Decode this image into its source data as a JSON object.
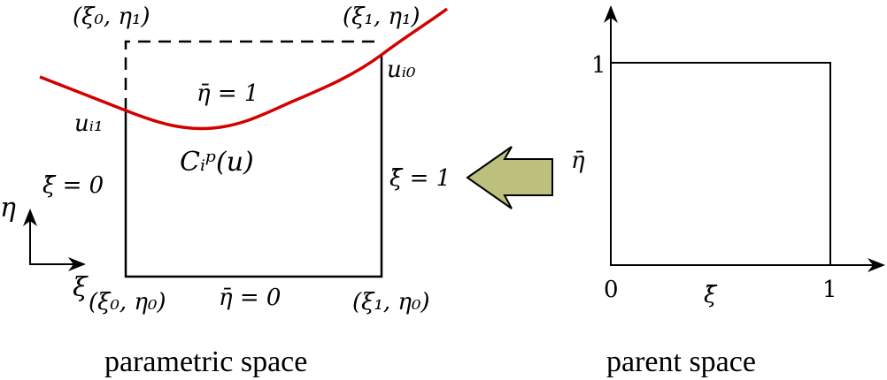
{
  "parametric": {
    "corner_tl": "(ξ₀, η₁)",
    "corner_tr": "(ξ₁, η₁)",
    "corner_bl": "(ξ₀, η₀)",
    "corner_br": "(ξ₁, η₀)",
    "top_edge": "η̄ = 1",
    "bottom_edge": "η̄ = 0",
    "left_edge": "ξ̄ = 0",
    "right_edge": "ξ̄ = 1",
    "u_left": "uᵢ₁",
    "u_right": "uᵢ₀",
    "curve_label": "Cᵢᵖ(u)",
    "axis_x": "ξ",
    "axis_y": "η",
    "caption": "parametric space",
    "curve_color": "#d40000"
  },
  "arrow": {
    "fill": "#bdbf7c"
  },
  "parent": {
    "y_tick": "1",
    "x_tick_0": "0",
    "x_tick_1": "1",
    "axis_x": "ξ̄",
    "axis_y": "η̄",
    "caption": "parent space"
  }
}
